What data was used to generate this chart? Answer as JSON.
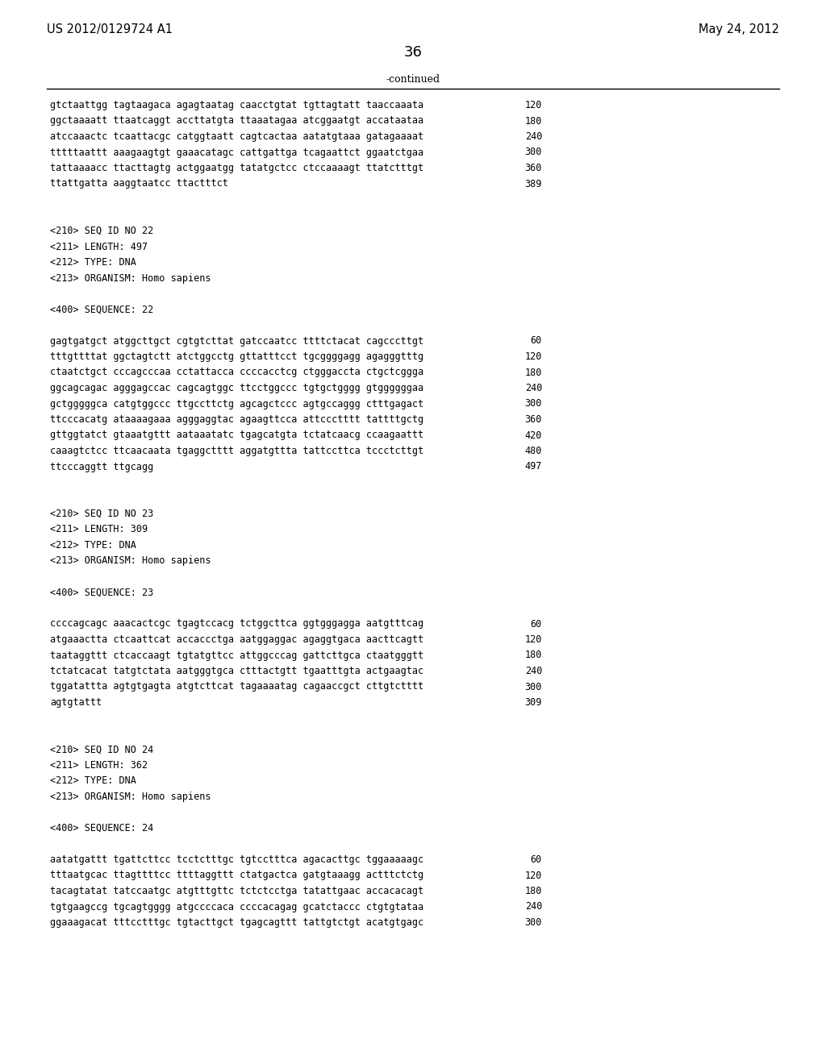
{
  "header_left": "US 2012/0129724 A1",
  "header_right": "May 24, 2012",
  "page_number": "36",
  "continued_label": "-continued",
  "background_color": "#ffffff",
  "text_color": "#000000",
  "lines": [
    {
      "text": "gtctaattgg tagtaagaca agagtaatag caacctgtat tgttagtatt taaccaaata",
      "num": "120",
      "type": "seq"
    },
    {
      "text": "ggctaaaatt ttaatcaggt accttatgta ttaaatagaa atcggaatgt accataataa",
      "num": "180",
      "type": "seq"
    },
    {
      "text": "atccaaactc tcaattacgc catggtaatt cagtcactaa aatatgtaaa gatagaaaat",
      "num": "240",
      "type": "seq"
    },
    {
      "text": "tttttaattt aaagaagtgt gaaacatagc cattgattga tcagaattct ggaatctgaa",
      "num": "300",
      "type": "seq"
    },
    {
      "text": "tattaaaacc ttacttagtg actggaatgg tatatgctcc ctccaaaagt ttatctttgt",
      "num": "360",
      "type": "seq"
    },
    {
      "text": "ttattgatta aaggtaatcc ttactttct",
      "num": "389",
      "type": "seq"
    },
    {
      "text": "",
      "num": "",
      "type": "blank"
    },
    {
      "text": "",
      "num": "",
      "type": "blank"
    },
    {
      "text": "<210> SEQ ID NO 22",
      "num": "",
      "type": "meta"
    },
    {
      "text": "<211> LENGTH: 497",
      "num": "",
      "type": "meta"
    },
    {
      "text": "<212> TYPE: DNA",
      "num": "",
      "type": "meta"
    },
    {
      "text": "<213> ORGANISM: Homo sapiens",
      "num": "",
      "type": "meta"
    },
    {
      "text": "",
      "num": "",
      "type": "blank"
    },
    {
      "text": "<400> SEQUENCE: 22",
      "num": "",
      "type": "meta"
    },
    {
      "text": "",
      "num": "",
      "type": "blank"
    },
    {
      "text": "gagtgatgct atggcttgct cgtgtcttat gatccaatcc ttttctacat cagcccttgt",
      "num": "60",
      "type": "seq"
    },
    {
      "text": "tttgttttat ggctagtctt atctggcctg gttatttcct tgcggggagg agagggtttg",
      "num": "120",
      "type": "seq"
    },
    {
      "text": "ctaatctgct cccagcccaa cctattacca ccccacctcg ctgggaccta ctgctcggga",
      "num": "180",
      "type": "seq"
    },
    {
      "text": "ggcagcagac agggagccac cagcagtggc ttcctggccc tgtgctgggg gtggggggaa",
      "num": "240",
      "type": "seq"
    },
    {
      "text": "gctgggggca catgtggccc ttgccttctg agcagctccc agtgccaggg ctttgagact",
      "num": "300",
      "type": "seq"
    },
    {
      "text": "ttcccacatg ataaaagaaa agggaggtac agaagttcca attccctttt tattttgctg",
      "num": "360",
      "type": "seq"
    },
    {
      "text": "gttggtatct gtaaatgttt aataaatatc tgagcatgta tctatcaacg ccaagaattt",
      "num": "420",
      "type": "seq"
    },
    {
      "text": "caaagtctcc ttcaacaata tgaggctttt aggatgttta tattccttca tccctcttgt",
      "num": "480",
      "type": "seq"
    },
    {
      "text": "ttcccaggtt ttgcagg",
      "num": "497",
      "type": "seq"
    },
    {
      "text": "",
      "num": "",
      "type": "blank"
    },
    {
      "text": "",
      "num": "",
      "type": "blank"
    },
    {
      "text": "<210> SEQ ID NO 23",
      "num": "",
      "type": "meta"
    },
    {
      "text": "<211> LENGTH: 309",
      "num": "",
      "type": "meta"
    },
    {
      "text": "<212> TYPE: DNA",
      "num": "",
      "type": "meta"
    },
    {
      "text": "<213> ORGANISM: Homo sapiens",
      "num": "",
      "type": "meta"
    },
    {
      "text": "",
      "num": "",
      "type": "blank"
    },
    {
      "text": "<400> SEQUENCE: 23",
      "num": "",
      "type": "meta"
    },
    {
      "text": "",
      "num": "",
      "type": "blank"
    },
    {
      "text": "ccccagcagc aaacactcgc tgagtccacg tctggcttca ggtgggagga aatgtttcag",
      "num": "60",
      "type": "seq"
    },
    {
      "text": "atgaaactta ctcaattcat accaccctga aatggaggac agaggtgaca aacttcagtt",
      "num": "120",
      "type": "seq"
    },
    {
      "text": "taataggttt ctcaccaagt tgtatgttcc attggcccag gattcttgca ctaatgggtt",
      "num": "180",
      "type": "seq"
    },
    {
      "text": "tctatcacat tatgtctata aatgggtgca ctttactgtt tgaatttgta actgaagtac",
      "num": "240",
      "type": "seq"
    },
    {
      "text": "tggatattta agtgtgagta atgtcttcat tagaaaatag cagaaccgct cttgtctttt",
      "num": "300",
      "type": "seq"
    },
    {
      "text": "agtgtattt",
      "num": "309",
      "type": "seq"
    },
    {
      "text": "",
      "num": "",
      "type": "blank"
    },
    {
      "text": "",
      "num": "",
      "type": "blank"
    },
    {
      "text": "<210> SEQ ID NO 24",
      "num": "",
      "type": "meta"
    },
    {
      "text": "<211> LENGTH: 362",
      "num": "",
      "type": "meta"
    },
    {
      "text": "<212> TYPE: DNA",
      "num": "",
      "type": "meta"
    },
    {
      "text": "<213> ORGANISM: Homo sapiens",
      "num": "",
      "type": "meta"
    },
    {
      "text": "",
      "num": "",
      "type": "blank"
    },
    {
      "text": "<400> SEQUENCE: 24",
      "num": "",
      "type": "meta"
    },
    {
      "text": "",
      "num": "",
      "type": "blank"
    },
    {
      "text": "aatatgattt tgattcttcc tcctctttgc tgtcctttca agacacttgc tggaaaaagc",
      "num": "60",
      "type": "seq"
    },
    {
      "text": "tttaatgcac ttagttttcc ttttaggttt ctatgactca gatgtaaagg actttctctg",
      "num": "120",
      "type": "seq"
    },
    {
      "text": "tacagtatat tatccaatgc atgtttgttc tctctcctga tatattgaac accacacagt",
      "num": "180",
      "type": "seq"
    },
    {
      "text": "tgtgaagccg tgcagtgggg atgccccaca ccccacagag gcatctaccc ctgtgtataa",
      "num": "240",
      "type": "seq"
    },
    {
      "text": "ggaaagacat tttcctttgc tgtacttgct tgagcagttt tattgtctgt acatgtgagc",
      "num": "300",
      "type": "seq"
    }
  ]
}
